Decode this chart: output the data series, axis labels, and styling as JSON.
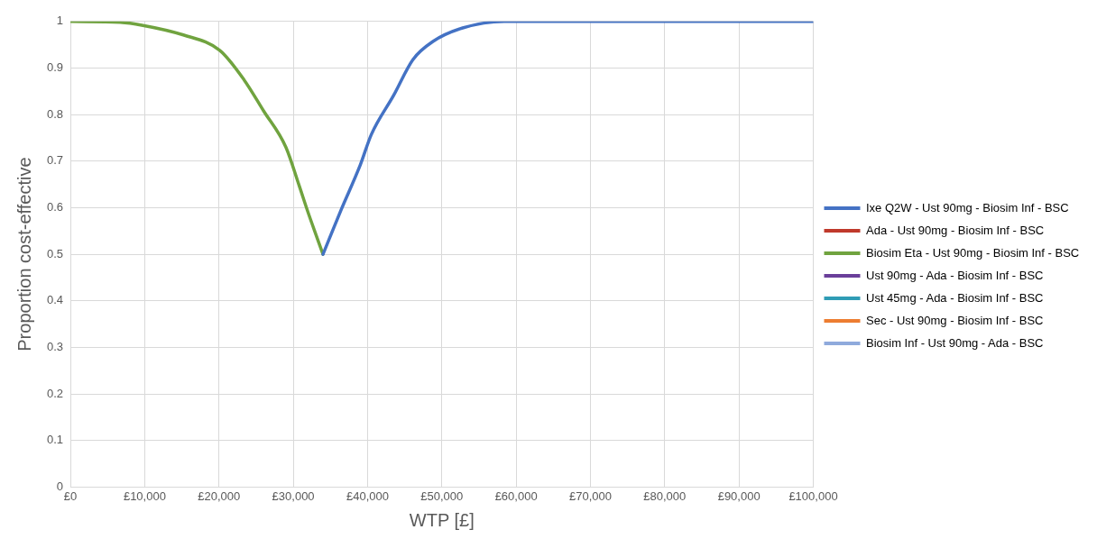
{
  "chart_data": {
    "type": "line",
    "xlabel": "WTP [£]",
    "ylabel": "Proportion cost-effective",
    "x": [
      0,
      6700,
      9600,
      15200,
      20100,
      23400,
      26000,
      29000,
      30800,
      31900,
      34000,
      36400,
      39000,
      40500,
      43500,
      46100,
      48800,
      52800,
      58400,
      100000
    ],
    "series": [
      {
        "name": "Ixe Q2W - Ust 90mg - Biosim Inf - BSC",
        "color": "#4472c4",
        "values": [
          null,
          null,
          null,
          null,
          null,
          null,
          null,
          null,
          null,
          null,
          0.5,
          0.594,
          0.691,
          0.757,
          0.841,
          0.918,
          0.957,
          0.986,
          1.0,
          1.0
        ]
      },
      {
        "name": "Ada - Ust 90mg - Biosim Inf - BSC",
        "color": "#c0392b",
        "values": [
          null,
          null,
          null,
          null,
          null,
          null,
          null,
          null,
          null,
          null,
          null,
          null,
          null,
          null,
          null,
          null,
          null,
          null,
          null,
          null
        ]
      },
      {
        "name": "Biosim Eta - Ust 90mg - Biosim Inf - BSC",
        "color": "#70a33f",
        "values": [
          1.0,
          0.998,
          0.992,
          0.971,
          0.938,
          0.874,
          0.808,
          0.73,
          0.647,
          0.594,
          0.5,
          null,
          null,
          null,
          null,
          null,
          null,
          null,
          null,
          null
        ]
      },
      {
        "name": "Ust 90mg - Ada - Biosim Inf - BSC",
        "color": "#6a3f9a",
        "values": [
          null,
          null,
          null,
          null,
          null,
          null,
          null,
          null,
          null,
          null,
          null,
          null,
          null,
          null,
          null,
          null,
          null,
          null,
          null,
          null
        ]
      },
      {
        "name": "Ust 45mg - Ada - Biosim Inf - BSC",
        "color": "#2f9cb5",
        "values": [
          null,
          null,
          null,
          null,
          null,
          null,
          null,
          null,
          null,
          null,
          null,
          null,
          null,
          null,
          null,
          null,
          null,
          null,
          null,
          null
        ]
      },
      {
        "name": "Sec - Ust 90mg - Biosim Inf - BSC",
        "color": "#ed7d31",
        "values": [
          null,
          null,
          null,
          null,
          null,
          null,
          null,
          null,
          null,
          null,
          null,
          null,
          null,
          null,
          null,
          null,
          null,
          null,
          null,
          null
        ]
      },
      {
        "name": "Biosim Inf - Ust 90mg - Ada - BSC",
        "color": "#8faadc",
        "values": [
          null,
          null,
          null,
          null,
          null,
          null,
          null,
          null,
          null,
          null,
          null,
          null,
          null,
          null,
          null,
          null,
          null,
          null,
          null,
          null
        ]
      }
    ],
    "xlim": [
      0,
      100000
    ],
    "xticks": [
      {
        "value": 0,
        "label": "£0"
      },
      {
        "value": 10000,
        "label": "£10,000"
      },
      {
        "value": 20000,
        "label": "£20,000"
      },
      {
        "value": 30000,
        "label": "£30,000"
      },
      {
        "value": 40000,
        "label": "£40,000"
      },
      {
        "value": 50000,
        "label": "£50,000"
      },
      {
        "value": 60000,
        "label": "£60,000"
      },
      {
        "value": 70000,
        "label": "£70,000"
      },
      {
        "value": 80000,
        "label": "£80,000"
      },
      {
        "value": 90000,
        "label": "£90,000"
      },
      {
        "value": 100000,
        "label": "£100,000"
      }
    ],
    "ylim": [
      0,
      1
    ],
    "yticks": [
      0,
      0.1,
      0.2,
      0.3,
      0.4,
      0.5,
      0.6,
      0.7,
      0.8,
      0.9,
      1
    ],
    "grid": true,
    "legend": "right",
    "marker": "none",
    "line_style": "solid"
  }
}
